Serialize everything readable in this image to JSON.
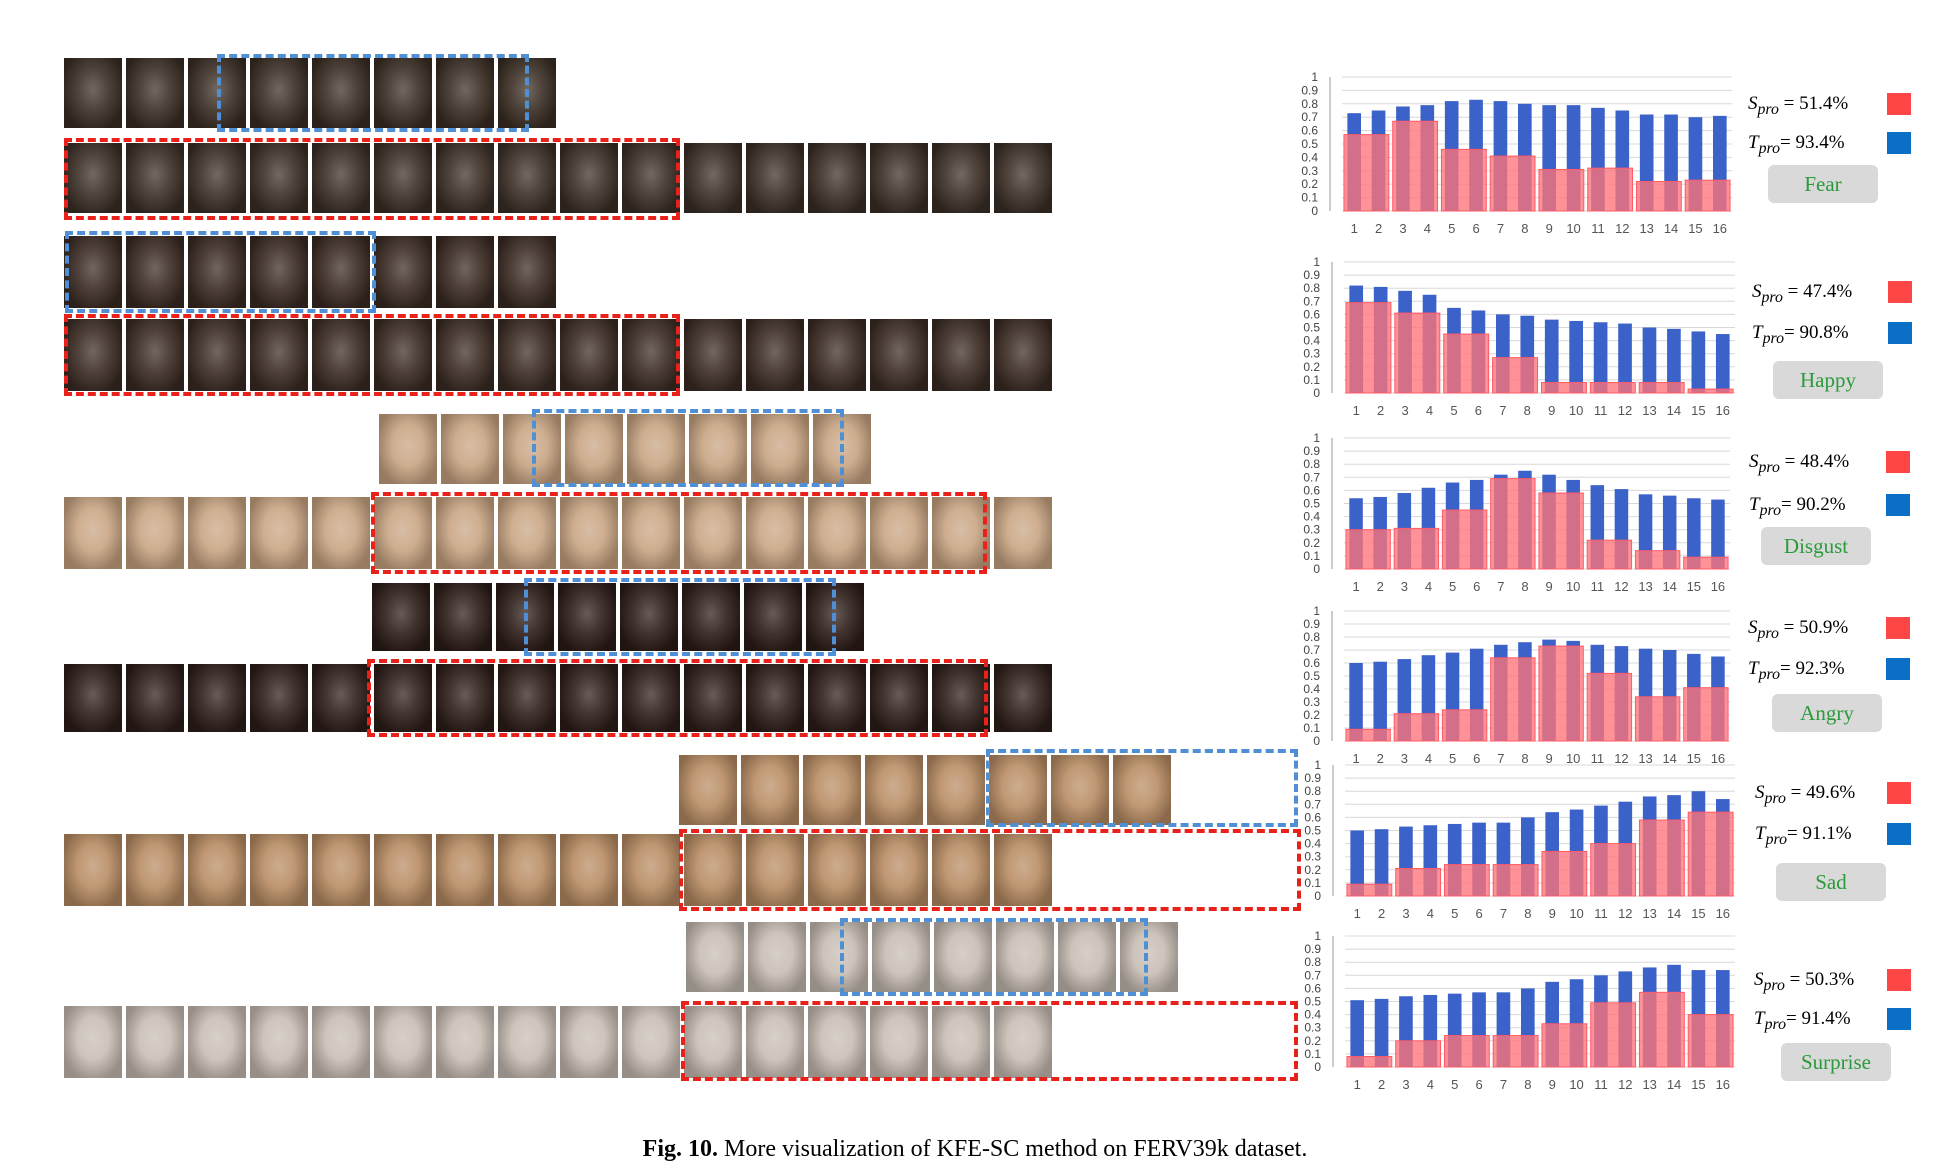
{
  "caption": {
    "label": "Fig. 10.",
    "text": " More visualization of KFE-SC method on FERV39k dataset."
  },
  "colors": {
    "bar_T": "#3b62c9",
    "bar_S": "rgba(255,115,120,0.78)",
    "box_blue": "#4f8fd6",
    "box_red": "#e8221b"
  },
  "chart_data": [
    {
      "type": "bar",
      "categories": [
        "1",
        "2",
        "3",
        "4",
        "5",
        "6",
        "7",
        "8",
        "9",
        "10",
        "11",
        "12",
        "13",
        "14",
        "15",
        "16"
      ],
      "ylim": [
        0,
        1
      ],
      "yticks": [
        "0",
        "0.1",
        "0.2",
        "0.3",
        "0.4",
        "0.5",
        "0.6",
        "0.7",
        "0.8",
        "0.9",
        "1"
      ],
      "series": [
        {
          "values": [
            0.73,
            0.75,
            0.78,
            0.79,
            0.82,
            0.83,
            0.82,
            0.8,
            0.79,
            0.79,
            0.77,
            0.75,
            0.72,
            0.72,
            0.7,
            0.71
          ]
        },
        {
          "values": [
            0.57,
            0,
            0.67,
            0,
            0.46,
            0,
            0.41,
            0,
            0.31,
            0,
            0.32,
            0,
            0.22,
            0,
            0.23,
            0
          ]
        }
      ]
    },
    {
      "type": "bar",
      "categories": [
        "1",
        "2",
        "3",
        "4",
        "5",
        "6",
        "7",
        "8",
        "9",
        "10",
        "11",
        "12",
        "13",
        "14",
        "15",
        "16"
      ],
      "ylim": [
        0,
        1
      ],
      "yticks": [
        "0",
        "0.1",
        "0.2",
        "0.3",
        "0.4",
        "0.5",
        "0.6",
        "0.7",
        "0.8",
        "0.9",
        "1"
      ],
      "series": [
        {
          "values": [
            0.82,
            0.81,
            0.78,
            0.75,
            0.65,
            0.63,
            0.6,
            0.59,
            0.56,
            0.55,
            0.54,
            0.53,
            0.5,
            0.49,
            0.47,
            0.45
          ]
        },
        {
          "values": [
            0.69,
            0,
            0.61,
            0,
            0.45,
            0,
            0.27,
            0,
            0.08,
            0,
            0.08,
            0,
            0.08,
            0,
            0.03,
            0
          ]
        }
      ]
    },
    {
      "type": "bar",
      "categories": [
        "1",
        "2",
        "3",
        "4",
        "5",
        "6",
        "7",
        "8",
        "9",
        "10",
        "11",
        "12",
        "13",
        "14",
        "15",
        "16"
      ],
      "ylim": [
        0,
        1
      ],
      "yticks": [
        "0",
        "0.1",
        "0.2",
        "0.3",
        "0.4",
        "0.5",
        "0.6",
        "0.7",
        "0.8",
        "0.9",
        "1"
      ],
      "series": [
        {
          "values": [
            0.54,
            0.55,
            0.58,
            0.62,
            0.66,
            0.68,
            0.72,
            0.75,
            0.72,
            0.68,
            0.64,
            0.61,
            0.57,
            0.56,
            0.54,
            0.53
          ]
        },
        {
          "values": [
            0.3,
            0,
            0.31,
            0,
            0.45,
            0,
            0.69,
            0,
            0.58,
            0,
            0.22,
            0,
            0.14,
            0,
            0.09,
            0
          ]
        }
      ]
    },
    {
      "type": "bar",
      "categories": [
        "1",
        "2",
        "3",
        "4",
        "5",
        "6",
        "7",
        "8",
        "9",
        "10",
        "11",
        "12",
        "13",
        "14",
        "15",
        "16"
      ],
      "ylim": [
        0,
        1
      ],
      "yticks": [
        "0",
        "0.1",
        "0.2",
        "0.3",
        "0.4",
        "0.5",
        "0.6",
        "0.7",
        "0.8",
        "0.9",
        "1"
      ],
      "series": [
        {
          "values": [
            0.6,
            0.61,
            0.63,
            0.66,
            0.68,
            0.71,
            0.74,
            0.76,
            0.78,
            0.77,
            0.74,
            0.73,
            0.71,
            0.7,
            0.67,
            0.65
          ]
        },
        {
          "values": [
            0.09,
            0,
            0.21,
            0,
            0.24,
            0,
            0.64,
            0,
            0.73,
            0,
            0.52,
            0,
            0.34,
            0,
            0.41,
            0
          ]
        }
      ]
    },
    {
      "type": "bar",
      "categories": [
        "1",
        "2",
        "3",
        "4",
        "5",
        "6",
        "7",
        "8",
        "9",
        "10",
        "11",
        "12",
        "13",
        "14",
        "15",
        "16"
      ],
      "ylim": [
        0,
        1
      ],
      "yticks": [
        "0",
        "0.1",
        "0.2",
        "0.3",
        "0.4",
        "0.5",
        "0.6",
        "0.7",
        "0.8",
        "0.9",
        "1"
      ],
      "series": [
        {
          "values": [
            0.5,
            0.51,
            0.53,
            0.54,
            0.55,
            0.56,
            0.56,
            0.6,
            0.64,
            0.66,
            0.69,
            0.72,
            0.76,
            0.77,
            0.8,
            0.74
          ]
        },
        {
          "values": [
            0.09,
            0,
            0.21,
            0,
            0.24,
            0,
            0.24,
            0,
            0.34,
            0,
            0.4,
            0,
            0.58,
            0,
            0.64,
            0
          ]
        }
      ]
    },
    {
      "type": "bar",
      "categories": [
        "1",
        "2",
        "3",
        "4",
        "5",
        "6",
        "7",
        "8",
        "9",
        "10",
        "11",
        "12",
        "13",
        "14",
        "15",
        "16"
      ],
      "ylim": [
        0,
        1
      ],
      "yticks": [
        "0",
        "0.1",
        "0.2",
        "0.3",
        "0.4",
        "0.5",
        "0.6",
        "0.7",
        "0.8",
        "0.9",
        "1"
      ],
      "series": [
        {
          "values": [
            0.51,
            0.52,
            0.54,
            0.55,
            0.56,
            0.57,
            0.57,
            0.6,
            0.65,
            0.67,
            0.7,
            0.73,
            0.76,
            0.78,
            0.74,
            0.74
          ]
        },
        {
          "values": [
            0.08,
            0,
            0.2,
            0,
            0.24,
            0,
            0.24,
            0,
            0.33,
            0,
            0.49,
            0,
            0.57,
            0,
            0.4,
            0
          ]
        }
      ]
    }
  ],
  "panels": [
    {
      "s_value": " = 51.4%",
      "t_value": "= 93.4%",
      "emotion": "Fear"
    },
    {
      "s_value": " = 47.4%",
      "t_value": "= 90.8%",
      "emotion": "Happy"
    },
    {
      "s_value": " = 48.4%",
      "t_value": "= 90.2%",
      "emotion": "Disgust"
    },
    {
      "s_value": " = 50.9%",
      "t_value": "= 92.3%",
      "emotion": "Angry"
    },
    {
      "s_value": " = 49.6%",
      "t_value": "= 91.1%",
      "emotion": "Sad"
    },
    {
      "s_value": " = 50.3%",
      "t_value": "= 91.4%",
      "emotion": "Surprise"
    }
  ],
  "symbols": {
    "S": "S",
    "T": "T",
    "sub": "pro"
  }
}
